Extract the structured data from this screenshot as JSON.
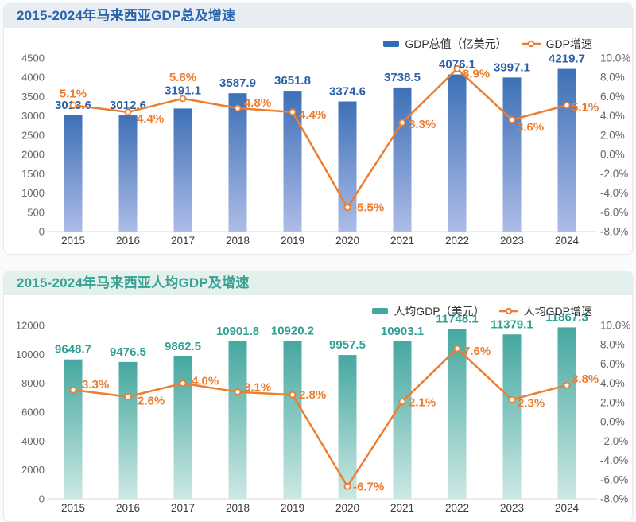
{
  "chart_data": [
    {
      "type": "bar+line",
      "title": "2015-2024年马来西亚GDP总及增速",
      "title_color": "#2a64ad",
      "header_bg": "#e8edf4",
      "categories": [
        "2015",
        "2016",
        "2017",
        "2018",
        "2019",
        "2020",
        "2021",
        "2022",
        "2023",
        "2024"
      ],
      "series": [
        {
          "name": "GDP总值（亿美元）",
          "type": "bar",
          "axis": "left",
          "values": [
            3013.6,
            3012.6,
            3191.1,
            3587.9,
            3651.8,
            3374.6,
            3738.5,
            4076.1,
            3997.1,
            4219.7
          ],
          "label_color": "#2e5fa8",
          "bar_top_color": "#3e70b6",
          "bar_bottom_color": "#adbce7",
          "legend_swatch": "#2f6eb6"
        },
        {
          "name": "GDP增速",
          "type": "line",
          "axis": "right",
          "values": [
            5.1,
            4.4,
            5.8,
            4.8,
            4.4,
            -5.5,
            3.3,
            8.9,
            3.6,
            5.1
          ],
          "color": "#ed7d2f"
        }
      ],
      "left_axis": {
        "min": 0,
        "max": 4500,
        "ticks": [
          "4500",
          "4000",
          "3500",
          "3000",
          "2500",
          "2000",
          "1500",
          "1000",
          "500",
          "0"
        ]
      },
      "right_axis": {
        "min": -8,
        "max": 10,
        "ticks": [
          "10.0%",
          "8.0%",
          "6.0%",
          "4.0%",
          "2.0%",
          "0.0%",
          "-2.0%",
          "-4.0%",
          "-6.0%",
          "-8.0%"
        ]
      },
      "legend_position": "top-right",
      "grid": false
    },
    {
      "type": "bar+line",
      "title": "2015-2024年马来西亚人均GDP及增速",
      "title_color": "#38a295",
      "header_bg": "#e3f0ec",
      "categories": [
        "2015",
        "2016",
        "2017",
        "2018",
        "2019",
        "2020",
        "2021",
        "2022",
        "2023",
        "2024"
      ],
      "series": [
        {
          "name": "人均GDP（美元）",
          "type": "bar",
          "axis": "left",
          "values": [
            9648.7,
            9476.5,
            9862.5,
            10901.8,
            10920.2,
            9957.5,
            10903.1,
            11748.1,
            11379.1,
            11867.3
          ],
          "label_color": "#30a094",
          "bar_top_color": "#45a8a0",
          "bar_bottom_color": "#cde8e4",
          "legend_swatch": "#45a8a0"
        },
        {
          "name": "人均GDP增速",
          "type": "line",
          "axis": "right",
          "values": [
            3.3,
            2.6,
            4.0,
            3.1,
            2.8,
            -6.7,
            2.1,
            7.6,
            2.3,
            3.8
          ],
          "color": "#ed7d2f"
        }
      ],
      "left_axis": {
        "min": 0,
        "max": 12000,
        "ticks": [
          "12000",
          "10000",
          "8000",
          "6000",
          "4000",
          "2000",
          "0"
        ]
      },
      "right_axis": {
        "min": -8,
        "max": 10,
        "ticks": [
          "10.0%",
          "8.0%",
          "6.0%",
          "4.0%",
          "2.0%",
          "0.0%",
          "-2.0%",
          "-4.0%",
          "-6.0%",
          "-8.0%"
        ]
      },
      "legend_position": "top-right",
      "grid": false
    }
  ],
  "style": {
    "line_color": "#ed7d2f",
    "axis_text_color": "#666666",
    "year_text_color": "#3a3a3a",
    "baseline_color": "#d9d9d9"
  },
  "layout_hints": {
    "line_label_offsets": [
      [
        [
          0,
          -10,
          "middle"
        ],
        [
          11,
          13,
          "start"
        ],
        [
          0,
          -22,
          "middle"
        ],
        [
          8,
          -2,
          "start"
        ],
        [
          8,
          8,
          "start"
        ],
        [
          7,
          5,
          "start"
        ],
        [
          8,
          7,
          "start"
        ],
        [
          7,
          11,
          "start"
        ],
        [
          6,
          14,
          "start"
        ],
        [
          6,
          7,
          "start"
        ]
      ],
      [
        [
          11,
          -2,
          "start"
        ],
        [
          12,
          10,
          "start"
        ],
        [
          11,
          2,
          "start"
        ],
        [
          8,
          -1,
          "start"
        ],
        [
          8,
          5,
          "start"
        ],
        [
          7,
          5,
          "start"
        ],
        [
          8,
          6,
          "start"
        ],
        [
          8,
          8,
          "start"
        ],
        [
          7,
          9,
          "start"
        ],
        [
          6,
          -3,
          "start"
        ]
      ]
    ],
    "bar_label_dy_overrides": [
      {
        "2": -18
      },
      {}
    ]
  }
}
